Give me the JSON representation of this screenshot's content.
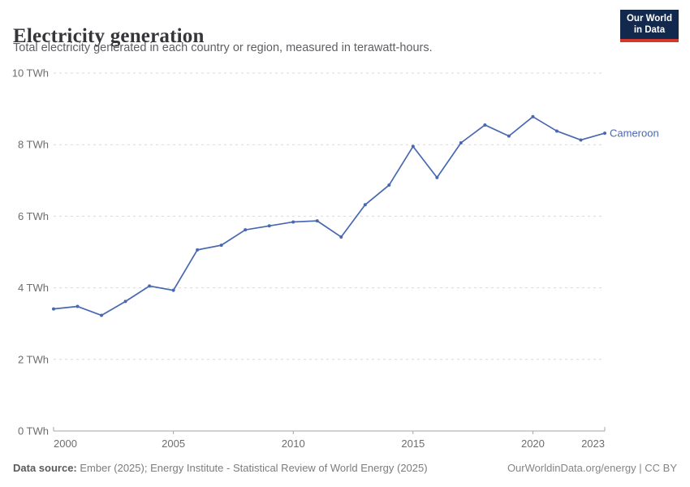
{
  "header": {
    "title": "Electricity generation",
    "subtitle": "Total electricity generated in each country or region, measured in terawatt-hours."
  },
  "logo": {
    "line1": "Our World",
    "line2": "in Data",
    "bg_color": "#12294d",
    "accent_color": "#d3382a"
  },
  "chart_data": {
    "type": "line",
    "title": "Electricity generation",
    "xlabel": "",
    "ylabel": "TWh",
    "x": [
      2000,
      2001,
      2002,
      2003,
      2004,
      2005,
      2006,
      2007,
      2008,
      2009,
      2010,
      2011,
      2012,
      2013,
      2014,
      2015,
      2016,
      2017,
      2018,
      2019,
      2020,
      2021,
      2022,
      2023
    ],
    "series": [
      {
        "name": "Cameroon",
        "color": "#4868B0",
        "values": [
          3.41,
          3.48,
          3.23,
          3.62,
          4.05,
          3.93,
          5.06,
          5.19,
          5.62,
          5.73,
          5.84,
          5.87,
          5.42,
          6.32,
          6.87,
          7.95,
          7.08,
          8.05,
          8.55,
          8.24,
          8.78,
          8.38,
          8.13,
          8.32
        ]
      }
    ],
    "ylim": [
      0,
      10
    ],
    "yticks": [
      0,
      2,
      4,
      6,
      8,
      10
    ],
    "ytick_suffix": " TWh",
    "xticks": [
      2000,
      2005,
      2010,
      2015,
      2020,
      2023
    ],
    "grid": "horizontal-dashed",
    "legend_position": "end-of-line-label",
    "colors": {
      "grid": "#d9d9d9",
      "axis": "#a5a5a5",
      "tick_text": "#6d6d6d"
    }
  },
  "footer": {
    "source_bold": "Data source:",
    "source_rest": " Ember (2025); Energy Institute - Statistical Review of World Energy (2025)",
    "credit": "OurWorldinData.org/energy | CC BY"
  }
}
